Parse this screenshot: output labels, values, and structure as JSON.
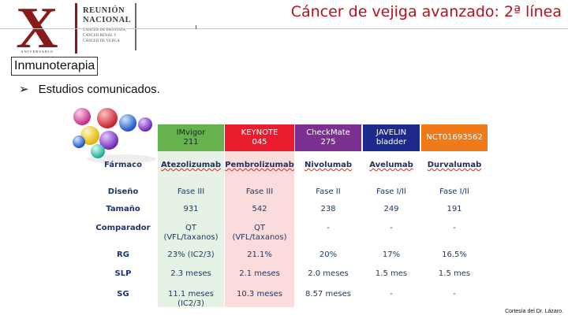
{
  "logo": {
    "roman": "X",
    "anniversary": "ANIVERSARIO",
    "title_lines": [
      "REUNIÓN",
      "NACIONAL"
    ],
    "sub_lines": [
      "CÁNCER DE PRÓSTATA,",
      "CÁNCER RENAL Y",
      "CÁNCER DE VEJIGA"
    ]
  },
  "header": {
    "title": "Cáncer de vejiga avanzado: 2ª línea"
  },
  "section": {
    "label": "Inmunoterapia"
  },
  "bullet": {
    "text": "Estudios comunicados."
  },
  "table": {
    "row_labels": [
      "Fármaco",
      "Diseño",
      "Tamaño",
      "Comparador",
      "RG",
      "SLP",
      "SG"
    ],
    "columns": [
      {
        "header": [
          "IMvigor",
          "211"
        ],
        "header_bg": "#66b34e",
        "header_fg": "#1a2a1a",
        "body_bg": "#e6f2e6",
        "cells": {
          "drug": "Atezolizumab",
          "design": "Fase III",
          "size": "931",
          "comparator": [
            "QT",
            "(VFL/taxanos)"
          ],
          "rg": "23% (IC2/3)",
          "slp": "2.3 meses",
          "sg": [
            "11.1 meses",
            "(IC2/3)"
          ]
        }
      },
      {
        "header": [
          "KEYNOTE",
          "045"
        ],
        "header_bg": "#ea1c2e",
        "header_fg": "#ffffff",
        "body_bg": "#fbdcdc",
        "cells": {
          "drug": "Pembrolizumab",
          "design": "Fase III",
          "size": "542",
          "comparator": [
            "QT",
            "(VFL/taxanos)"
          ],
          "rg": "21.1%",
          "slp": "2.1 meses",
          "sg": [
            "10.3 meses"
          ]
        }
      },
      {
        "header": [
          "CheckMate",
          "275"
        ],
        "header_bg": "#7b2f90",
        "header_fg": "#ffffff",
        "body_bg": "#ffffff",
        "cells": {
          "drug": "Nivolumab",
          "design": "Fase II",
          "size": "238",
          "comparator": [
            "-"
          ],
          "rg": "20%",
          "slp": "2.0 meses",
          "sg": [
            "8.57 meses"
          ]
        }
      },
      {
        "header": [
          "JAVELIN",
          "bladder"
        ],
        "header_bg": "#1c2a8c",
        "header_fg": "#ffffff",
        "body_bg": "#ffffff",
        "cells": {
          "drug": "Avelumab",
          "design": "Fase I/II",
          "size": "249",
          "comparator": [
            "-"
          ],
          "rg": "17%",
          "slp": "1.5 mes",
          "sg": [
            "-"
          ]
        }
      },
      {
        "header": [
          "NCT01693562"
        ],
        "header_bg": "#f07a1a",
        "header_fg": "#ffffff",
        "body_bg": "#ffffff",
        "cells": {
          "drug": "Durvalumab",
          "design": "Fase I/II",
          "size": "191",
          "comparator": [
            "-"
          ],
          "rg": "16.5%",
          "slp": "1.5 mes",
          "sg": [
            "-"
          ]
        }
      }
    ]
  },
  "credit": "Cortesía del Dr. Lázaro."
}
